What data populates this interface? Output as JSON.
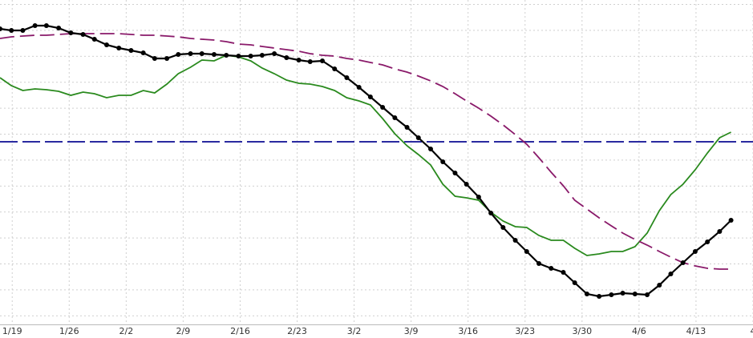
{
  "chart_data": {
    "type": "line",
    "x": [
      -1.5,
      -0.1,
      1.3,
      2.8,
      4.2,
      5.7,
      7.2,
      8.7,
      10.1,
      11.6,
      13.1,
      14.6,
      16.1,
      17.5,
      19.0,
      20.4,
      21.9,
      23.3,
      24.8,
      26.3,
      27.8,
      29.3,
      30.7,
      32.2,
      33.7,
      35.2,
      36.6,
      38.1,
      39.6,
      41.1,
      42.6,
      44.0,
      45.5,
      47.0,
      48.5,
      49.9,
      51.4,
      52.9,
      54.4,
      55.8,
      57.3,
      58.8,
      60.3,
      61.8,
      63.2,
      64.7,
      66.2,
      67.7,
      69.1,
      70.6,
      72.1,
      73.6,
      75.0,
      76.5,
      78.0,
      79.5,
      80.9,
      82.4,
      83.9,
      85.4,
      86.9,
      88.3
    ],
    "series": [
      {
        "color": "#2a8a1e",
        "dash": "none",
        "markers": false,
        "values": [
          308,
          298,
          292,
          294,
          293,
          291,
          286,
          290,
          288,
          283,
          286,
          286,
          292,
          289,
          300,
          313,
          321,
          330,
          329,
          336,
          334,
          329,
          320,
          313,
          305,
          301,
          300,
          297,
          292,
          283,
          279,
          274,
          257,
          238,
          223,
          212,
          199,
          175,
          160,
          158,
          155,
          140,
          129,
          122,
          121,
          111,
          105,
          105,
          95,
          86,
          88,
          91,
          91,
          97,
          114,
          142,
          162,
          175,
          193,
          214,
          233,
          240
        ]
      },
      {
        "color": "#8a1a6a",
        "dash": "18 7",
        "markers": false,
        "values": [
          357,
          359,
          360,
          361,
          361,
          362,
          363,
          363,
          363,
          363,
          363,
          362,
          361,
          361,
          360,
          359,
          357,
          356,
          355,
          353,
          350,
          349,
          347,
          345,
          343,
          341,
          338,
          336,
          335,
          332,
          330,
          327,
          324,
          319,
          315,
          310,
          304,
          297,
          288,
          279,
          270,
          260,
          249,
          237,
          225,
          208,
          190,
          173,
          155,
          144,
          133,
          123,
          114,
          106,
          99,
          91,
          84,
          77,
          73,
          70,
          69,
          69
        ]
      },
      {
        "color": "#000000",
        "dash": "none",
        "markers": true,
        "values": [
          369,
          367,
          367,
          373,
          373,
          370,
          364,
          362,
          356,
          349,
          345,
          342,
          339,
          332,
          332,
          337,
          338,
          338,
          337,
          336,
          335,
          335,
          336,
          338,
          333,
          330,
          328,
          329,
          319,
          308,
          296,
          284,
          271,
          258,
          246,
          233,
          219,
          203,
          189,
          175,
          159,
          139,
          121,
          105,
          91,
          76,
          70,
          65,
          52,
          38,
          35,
          37,
          39,
          38,
          37,
          49,
          63,
          77,
          91,
          103,
          116,
          130
        ]
      }
    ],
    "hline": {
      "value": 228,
      "color": "#2a2aa0"
    },
    "xlim": [
      -1.5,
      91
    ],
    "xticks": [
      {
        "value": 0,
        "label": "1/19"
      },
      {
        "value": 7,
        "label": "1/26"
      },
      {
        "value": 14,
        "label": "2/2"
      },
      {
        "value": 21,
        "label": "2/9"
      },
      {
        "value": 28,
        "label": "2/16"
      },
      {
        "value": 35,
        "label": "2/23"
      },
      {
        "value": 42,
        "label": "3/2"
      },
      {
        "value": 49,
        "label": "3/9"
      },
      {
        "value": 56,
        "label": "3/16"
      },
      {
        "value": 63,
        "label": "3/23"
      },
      {
        "value": 70,
        "label": "3/30"
      },
      {
        "value": 77,
        "label": "4/6"
      },
      {
        "value": 84,
        "label": "4/13"
      },
      {
        "value": 91,
        "label": "4"
      }
    ],
    "ylim": [
      0,
      405
    ],
    "grid": true
  }
}
